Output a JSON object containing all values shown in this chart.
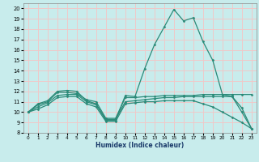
{
  "xlabel": "Humidex (Indice chaleur)",
  "bg_color": "#c8ecec",
  "grid_color": "#f0c8c8",
  "line_color": "#2a8a78",
  "xlim": [
    -0.5,
    23.5
  ],
  "ylim": [
    8,
    20.5
  ],
  "yticks": [
    8,
    9,
    10,
    11,
    12,
    13,
    14,
    15,
    16,
    17,
    18,
    19,
    20
  ],
  "xticks": [
    0,
    1,
    2,
    3,
    4,
    5,
    6,
    7,
    8,
    9,
    10,
    11,
    12,
    13,
    14,
    15,
    16,
    17,
    18,
    19,
    20,
    21,
    22,
    23
  ],
  "curves": [
    {
      "x": [
        0,
        1,
        2,
        3,
        4,
        5,
        6,
        7,
        8,
        9,
        10,
        11,
        12,
        13,
        14,
        15,
        16,
        17,
        18,
        19,
        20,
        21,
        22,
        23
      ],
      "y": [
        10.0,
        10.8,
        11.1,
        12.0,
        12.1,
        12.0,
        11.1,
        10.8,
        9.2,
        9.2,
        11.6,
        11.5,
        14.2,
        16.5,
        18.2,
        19.9,
        18.8,
        19.1,
        16.8,
        15.0,
        11.7,
        11.5,
        10.4,
        8.4
      ]
    },
    {
      "x": [
        0,
        1,
        2,
        3,
        4,
        5,
        6,
        7,
        8,
        9,
        10,
        11,
        12,
        13,
        14,
        15,
        16,
        17,
        18,
        19,
        20,
        21,
        22,
        23
      ],
      "y": [
        10.0,
        10.7,
        11.0,
        11.9,
        11.9,
        11.8,
        11.2,
        11.0,
        9.4,
        9.4,
        11.4,
        11.4,
        11.5,
        11.5,
        11.6,
        11.6,
        11.6,
        11.6,
        11.7,
        11.7,
        11.7,
        11.7,
        11.7,
        11.7
      ]
    },
    {
      "x": [
        0,
        1,
        2,
        3,
        4,
        5,
        6,
        7,
        8,
        9,
        10,
        11,
        12,
        13,
        14,
        15,
        16,
        17,
        18,
        19,
        20,
        21,
        22,
        23
      ],
      "y": [
        10.0,
        10.5,
        10.9,
        11.6,
        11.7,
        11.7,
        11.0,
        10.7,
        9.3,
        9.3,
        11.0,
        11.1,
        11.2,
        11.3,
        11.4,
        11.4,
        11.5,
        11.5,
        11.5,
        11.5,
        11.5,
        11.5,
        10.0,
        8.4
      ]
    },
    {
      "x": [
        0,
        1,
        2,
        3,
        4,
        5,
        6,
        7,
        8,
        9,
        10,
        11,
        12,
        13,
        14,
        15,
        16,
        17,
        18,
        19,
        20,
        21,
        22,
        23
      ],
      "y": [
        10.0,
        10.3,
        10.7,
        11.4,
        11.5,
        11.5,
        10.8,
        10.5,
        9.1,
        9.1,
        10.8,
        10.9,
        11.0,
        11.0,
        11.1,
        11.1,
        11.1,
        11.1,
        10.8,
        10.5,
        10.0,
        9.5,
        9.0,
        8.4
      ]
    }
  ]
}
